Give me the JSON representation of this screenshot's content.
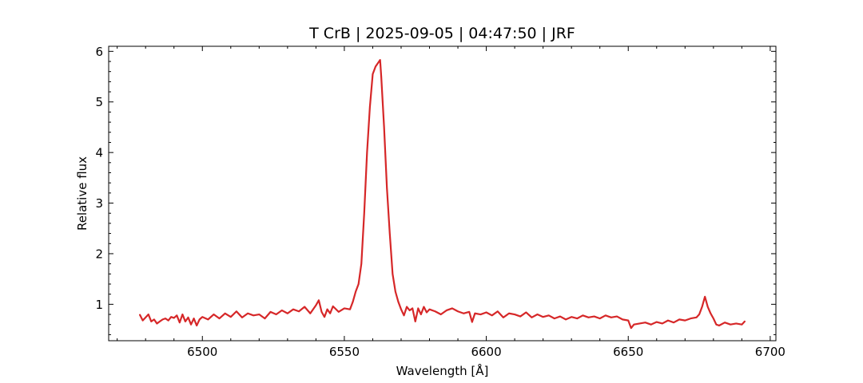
{
  "chart_data": {
    "type": "line",
    "title": "T CrB | 2025-09-05 | 04:47:50 | JRF",
    "xlabel": "Wavelength [Å]",
    "ylabel": "Relative flux",
    "xlim": [
      6467,
      6702
    ],
    "ylim": [
      0.28,
      6.1
    ],
    "xticks": [
      6500,
      6550,
      6600,
      6650,
      6700
    ],
    "yticks": [
      1,
      2,
      3,
      4,
      5,
      6
    ],
    "x_minor_step": 10,
    "y_minor_step": 0.2,
    "grid": false,
    "ticks_direction": "in",
    "series": [
      {
        "color": "#d62728",
        "x": [
          6478,
          6479,
          6480,
          6481,
          6482,
          6483,
          6484,
          6485,
          6486,
          6487,
          6488,
          6489,
          6490,
          6491,
          6492,
          6493,
          6494,
          6495,
          6496,
          6497,
          6498,
          6499,
          6500,
          6502,
          6504,
          6506,
          6508,
          6510,
          6512,
          6514,
          6516,
          6518,
          6520,
          6522,
          6524,
          6526,
          6528,
          6530,
          6532,
          6534,
          6536,
          6538,
          6540,
          6541,
          6542,
          6543,
          6544,
          6545,
          6546,
          6548,
          6550,
          6552,
          6553,
          6554,
          6555,
          6556,
          6557,
          6558,
          6559,
          6560,
          6561,
          6562,
          6562.6,
          6563,
          6564,
          6565,
          6566,
          6567,
          6568,
          6569,
          6570,
          6571,
          6572,
          6573,
          6574,
          6575,
          6576,
          6577,
          6578,
          6579,
          6580,
          6582,
          6584,
          6586,
          6588,
          6590,
          6592,
          6594,
          6595,
          6596,
          6598,
          6600,
          6602,
          6604,
          6606,
          6608,
          6610,
          6612,
          6614,
          6616,
          6618,
          6620,
          6622,
          6624,
          6626,
          6628,
          6630,
          6632,
          6634,
          6636,
          6638,
          6640,
          6642,
          6644,
          6646,
          6648,
          6650,
          6651,
          6652,
          6654,
          6656,
          6658,
          6660,
          6662,
          6664,
          6666,
          6668,
          6670,
          6672,
          6674,
          6675,
          6676,
          6677,
          6678,
          6679,
          6680,
          6681,
          6682,
          6684,
          6686,
          6688,
          6690,
          6691
        ],
        "y": [
          0.79,
          0.68,
          0.74,
          0.8,
          0.66,
          0.7,
          0.62,
          0.66,
          0.7,
          0.72,
          0.68,
          0.75,
          0.73,
          0.78,
          0.64,
          0.8,
          0.66,
          0.74,
          0.6,
          0.72,
          0.58,
          0.7,
          0.75,
          0.7,
          0.8,
          0.72,
          0.82,
          0.75,
          0.86,
          0.74,
          0.82,
          0.78,
          0.8,
          0.72,
          0.85,
          0.8,
          0.88,
          0.82,
          0.9,
          0.86,
          0.95,
          0.82,
          0.98,
          1.08,
          0.85,
          0.75,
          0.9,
          0.82,
          0.96,
          0.85,
          0.92,
          0.9,
          1.05,
          1.25,
          1.4,
          1.8,
          2.8,
          4.0,
          4.9,
          5.55,
          5.7,
          5.78,
          5.83,
          5.5,
          4.5,
          3.3,
          2.4,
          1.6,
          1.25,
          1.05,
          0.9,
          0.78,
          0.95,
          0.88,
          0.92,
          0.66,
          0.92,
          0.8,
          0.95,
          0.84,
          0.9,
          0.86,
          0.8,
          0.88,
          0.92,
          0.86,
          0.82,
          0.85,
          0.65,
          0.82,
          0.8,
          0.84,
          0.78,
          0.86,
          0.74,
          0.82,
          0.8,
          0.76,
          0.84,
          0.74,
          0.8,
          0.75,
          0.78,
          0.72,
          0.76,
          0.7,
          0.75,
          0.72,
          0.78,
          0.74,
          0.76,
          0.72,
          0.78,
          0.74,
          0.76,
          0.7,
          0.68,
          0.53,
          0.6,
          0.62,
          0.64,
          0.6,
          0.65,
          0.62,
          0.68,
          0.64,
          0.7,
          0.68,
          0.72,
          0.74,
          0.8,
          0.95,
          1.15,
          0.95,
          0.82,
          0.72,
          0.6,
          0.58,
          0.64,
          0.6,
          0.62,
          0.6,
          0.66
        ]
      }
    ]
  }
}
